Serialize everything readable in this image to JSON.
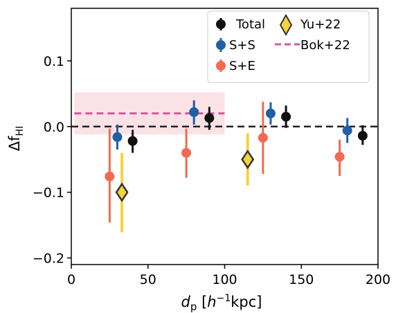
{
  "chart_data": {
    "type": "scatter",
    "x_axis": {
      "label_main": "d",
      "label_sub": "p",
      "label_bracket_open": " [",
      "label_h": "h",
      "label_exp": "−1",
      "label_unit": "kpc]",
      "range": [
        0,
        200
      ],
      "ticks": [
        0,
        50,
        100,
        150,
        200
      ],
      "tick_labels": [
        "0",
        "50",
        "100",
        "150",
        "200"
      ]
    },
    "y_axis": {
      "label_main": "Δf",
      "label_sub": "HI",
      "range": [
        -0.21,
        0.18
      ],
      "ticks": [
        -0.2,
        -0.1,
        0.0,
        0.1
      ],
      "tick_labels": [
        "−0.2",
        "−0.1",
        "0.0",
        "0.1"
      ]
    },
    "reference_line": {
      "y": 0.0,
      "style": "dashed",
      "color": "#222222"
    },
    "band": {
      "x": [
        2,
        100
      ],
      "y_low": -0.012,
      "y_high": 0.052,
      "line_y": 0.02,
      "color": "#d9559e",
      "fill": "#fbe2e6"
    },
    "series": [
      {
        "name": "Total",
        "color": "#111111",
        "marker": "circle",
        "points": [
          {
            "x": 40,
            "y": -0.022,
            "lo": -0.04,
            "hi": -0.005
          },
          {
            "x": 90,
            "y": 0.013,
            "lo": -0.005,
            "hi": 0.03
          },
          {
            "x": 140,
            "y": 0.015,
            "lo": -0.002,
            "hi": 0.032
          },
          {
            "x": 190,
            "y": -0.014,
            "lo": -0.028,
            "hi": 0.002
          }
        ]
      },
      {
        "name": "S+S",
        "color": "#1f5fa6",
        "marker": "circle",
        "points": [
          {
            "x": 30,
            "y": -0.016,
            "lo": -0.035,
            "hi": 0.003
          },
          {
            "x": 80,
            "y": 0.022,
            "lo": 0.003,
            "hi": 0.04
          },
          {
            "x": 130,
            "y": 0.02,
            "lo": 0.003,
            "hi": 0.037
          },
          {
            "x": 180,
            "y": -0.006,
            "lo": -0.025,
            "hi": 0.013
          }
        ]
      },
      {
        "name": "S+E",
        "color": "#f26a4f",
        "marker": "circle",
        "points": [
          {
            "x": 25,
            "y": -0.076,
            "lo": -0.146,
            "hi": -0.003
          },
          {
            "x": 75,
            "y": -0.04,
            "lo": -0.078,
            "hi": -0.003
          },
          {
            "x": 125,
            "y": -0.017,
            "lo": -0.072,
            "hi": 0.038
          },
          {
            "x": 175,
            "y": -0.046,
            "lo": -0.075,
            "hi": -0.02
          }
        ]
      },
      {
        "name": "Yu+22",
        "color": "#f5d33a",
        "marker": "diamond",
        "points": [
          {
            "x": 33,
            "y": -0.1,
            "lo": -0.161,
            "hi": -0.04
          },
          {
            "x": 115,
            "y": -0.05,
            "lo": -0.09,
            "hi": -0.01
          }
        ]
      }
    ],
    "legend": {
      "placement": "top-right",
      "entries": [
        "Total",
        "Yu+22",
        "S+S",
        "Bok+22",
        "S+E"
      ]
    }
  }
}
